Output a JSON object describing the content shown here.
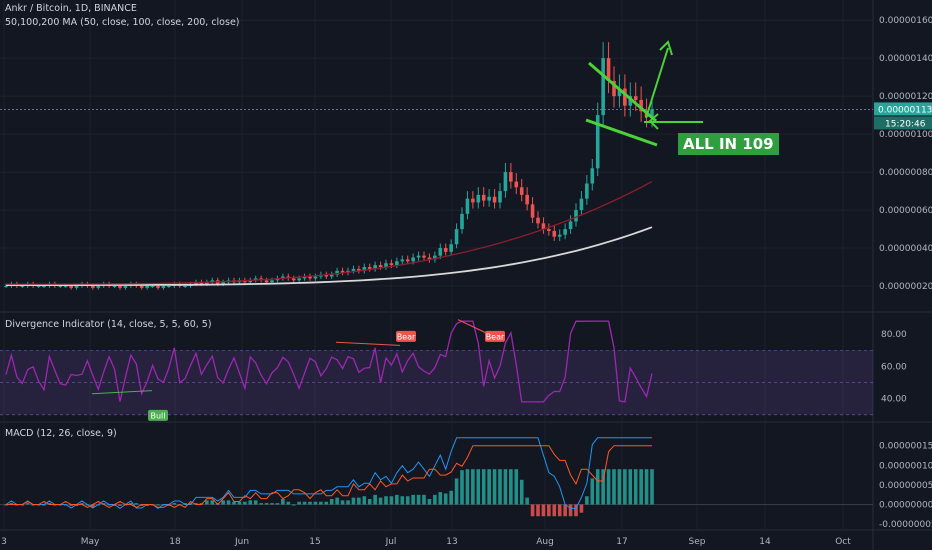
{
  "header": {
    "title": "Ankr / Bitcoin, 1D, BINANCE",
    "ma_label": "50,100,200 MA (50, close, 100, close, 200, close)"
  },
  "price_pane": {
    "price_label": "0.00000113",
    "countdown": "15:20:46"
  },
  "annotations": {
    "badge": "ALL IN 109",
    "bull": "Bull",
    "bear1": "Bear",
    "bear2": "Bear"
  },
  "rsi_pane": {
    "title": "Divergence Indicator (14, close, 5, 5, 60, 5)"
  },
  "macd_pane": {
    "title": "MACD (12, 26, close, 9)"
  },
  "colors": {
    "background": "#131722",
    "up": "#26a69a",
    "down": "#ef5350",
    "ma_white": "#d8d8d8",
    "ma_maroon": "#8c1e2e",
    "rsi": "#9c27b0",
    "macd_line": "#2196f3",
    "signal_line": "#ff5722",
    "annotation": "#4cd137"
  },
  "chart_data": [
    {
      "type": "candlestick",
      "title": "Ankr / Bitcoin, 1D, BINANCE",
      "y_ticks": [
        "0.00000160",
        "0.00000140",
        "0.00000120",
        "0.00000100",
        "0.00000080",
        "0.00000060",
        "0.00000040",
        "0.00000020"
      ],
      "ylim": [
        1e-07,
        1.68e-06
      ],
      "candles_close": [
        2e-07,
        2.1e-07,
        2e-07,
        2e-07,
        2.1e-07,
        2e-07,
        2e-07,
        2e-07,
        2.1e-07,
        2e-07,
        2e-07,
        2e-07,
        1.9e-07,
        2e-07,
        2.1e-07,
        2e-07,
        1.9e-07,
        2e-07,
        2.1e-07,
        2e-07,
        2e-07,
        1.9e-07,
        2e-07,
        2.1e-07,
        2e-07,
        1.9e-07,
        2e-07,
        2e-07,
        1.9e-07,
        2e-07,
        2e-07,
        2.1e-07,
        2e-07,
        2e-07,
        2.1e-07,
        2.2e-07,
        2.1e-07,
        2.2e-07,
        2.3e-07,
        2.1e-07,
        2.2e-07,
        2.3e-07,
        2.2e-07,
        2.3e-07,
        2.2e-07,
        2.3e-07,
        2.4e-07,
        2.3e-07,
        2.2e-07,
        2.3e-07,
        2.4e-07,
        2.5e-07,
        2.4e-07,
        2.3e-07,
        2.4e-07,
        2.5e-07,
        2.4e-07,
        2.5e-07,
        2.6e-07,
        2.5e-07,
        2.6e-07,
        2.8e-07,
        2.7e-07,
        2.8e-07,
        2.9e-07,
        2.8e-07,
        3e-07,
        2.9e-07,
        3.1e-07,
        3e-07,
        3.2e-07,
        3.1e-07,
        3.3e-07,
        3.4e-07,
        3.3e-07,
        3.5e-07,
        3.6e-07,
        3.5e-07,
        3.4e-07,
        3.6e-07,
        4e-07,
        3.8e-07,
        4.2e-07,
        5e-07,
        5.8e-07,
        6.6e-07,
        6.4e-07,
        6.8e-07,
        6.5e-07,
        6.7e-07,
        6.4e-07,
        7e-07,
        8e-07,
        7.5e-07,
        7.2e-07,
        6.8e-07,
        6.3e-07,
        5.6e-07,
        5.3e-07,
        5e-07,
        4.9e-07,
        4.6e-07,
        4.7e-07,
        5e-07,
        5.4e-07,
        6e-07,
        6.6e-07,
        7.4e-07,
        8.2e-07,
        1.1e-06,
        1.4e-06,
        1.28e-06,
        1.2e-06,
        1.24e-06,
        1.15e-06,
        1.2e-06,
        1.18e-06,
        1.12e-06,
        1.09e-06,
        1.13e-06
      ],
      "ma_100_end": 7.5e-07,
      "ma_200_end": 5.1e-07
    },
    {
      "type": "line",
      "title": "Divergence Indicator (14, close, 5, 5, 60, 5)",
      "y_ticks": [
        "80.00",
        "60.00",
        "40.00"
      ],
      "ylim": [
        28,
        90
      ],
      "bands": [
        70,
        50,
        30
      ]
    },
    {
      "type": "line",
      "title": "MACD (12, 26, close, 9)",
      "y_ticks": [
        "0.00000015",
        "0.00000010",
        "0.00000005",
        "0.00000000",
        "-0.00000005"
      ],
      "ylim": [
        -6e-08,
        1.9e-07
      ]
    }
  ],
  "x_axis": [
    "3",
    "May",
    "18",
    "Jun",
    "15",
    "Jul",
    "13",
    "Aug",
    "17",
    "Sep",
    "14",
    "Oct"
  ]
}
